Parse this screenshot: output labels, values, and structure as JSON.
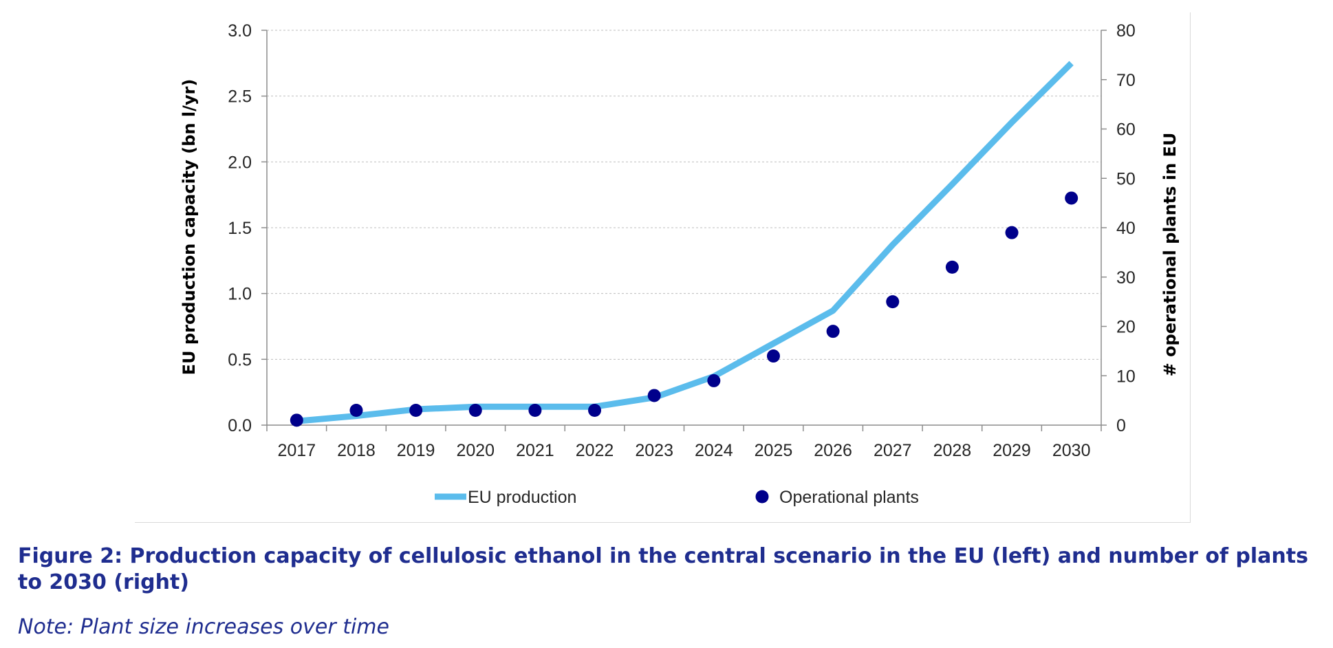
{
  "chart_data": {
    "type": "line",
    "categories": [
      "2017",
      "2018",
      "2019",
      "2020",
      "2021",
      "2022",
      "2023",
      "2024",
      "2025",
      "2026",
      "2027",
      "2028",
      "2029",
      "2030"
    ],
    "series": [
      {
        "name": "EU production",
        "type": "line",
        "axis": "left",
        "color": "#5bbcec",
        "values": [
          0.03,
          0.07,
          0.12,
          0.14,
          0.14,
          0.14,
          0.21,
          0.37,
          0.62,
          0.87,
          1.37,
          1.83,
          2.3,
          2.75
        ]
      },
      {
        "name": "Operational plants",
        "type": "scatter",
        "axis": "right",
        "color": "#00008b",
        "values": [
          1,
          3,
          3,
          3,
          3,
          3,
          6,
          9,
          14,
          19,
          25,
          32,
          39,
          46
        ]
      }
    ],
    "ylabel": "EU production capacity (bn l/yr)",
    "ylabel_right": "# operational plants in EU",
    "ylim": [
      0,
      3.0
    ],
    "y_ticks": [
      "0.0",
      "0.5",
      "1.0",
      "1.5",
      "2.0",
      "2.5",
      "3.0"
    ],
    "ylim_right": [
      0,
      80
    ],
    "y_ticks_right": [
      "0",
      "10",
      "20",
      "30",
      "40",
      "50",
      "60",
      "70",
      "80"
    ],
    "grid": true,
    "legend_position": "bottom"
  },
  "caption": {
    "title": "Figure 2: Production capacity of cellulosic ethanol in the central scenario in the EU (left) and number of plants to 2030 (right)",
    "note": "Note: Plant size increases over time"
  }
}
